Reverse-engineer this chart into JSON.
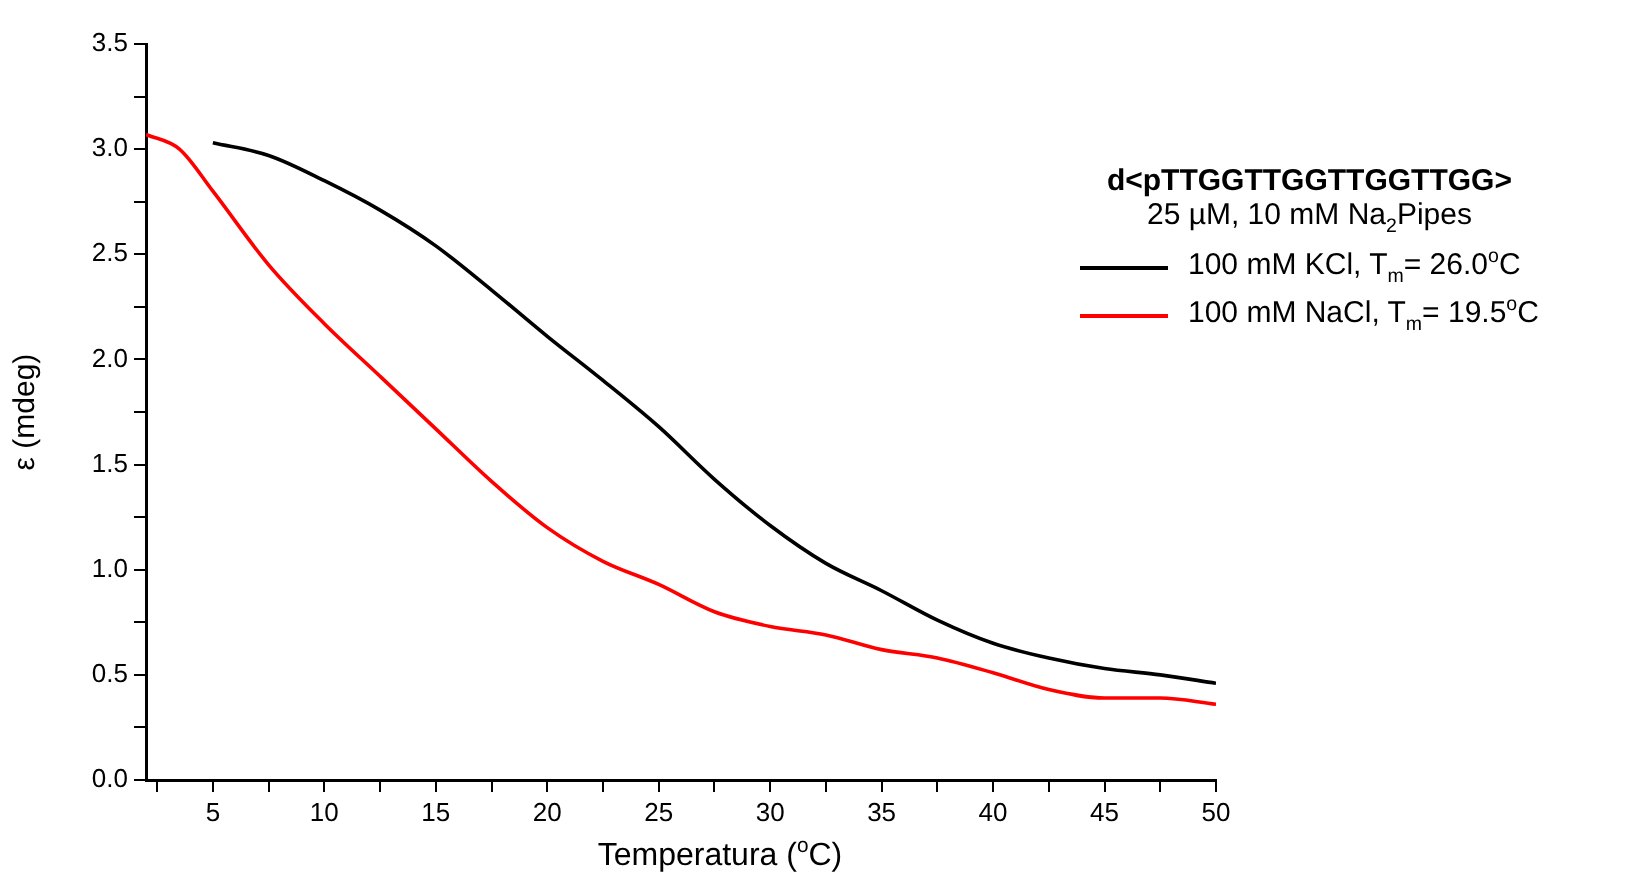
{
  "chart_data": {
    "type": "line",
    "xlabel": "Temperatura ($^{o}$C)",
    "ylabel": "ε (mdeg)",
    "legend_title": "d<pTTGGTTGGTTGGTTGG>",
    "subtitle": "25 µM, 10 mM Na$_{2}$Pipes",
    "xlim": [
      2,
      50
    ],
    "xticks": [
      {
        "value": 2.5,
        "label": null
      },
      5,
      {
        "value": 7.5,
        "label": null
      },
      10,
      {
        "value": 12.5,
        "label": null
      },
      15,
      {
        "value": 17.5,
        "label": null
      },
      20,
      {
        "value": 22.5,
        "label": null
      },
      25,
      {
        "value": 27.5,
        "label": null
      },
      30,
      {
        "value": 32.5,
        "label": null
      },
      35,
      {
        "value": 37.5,
        "label": null
      },
      40,
      {
        "value": 42.5,
        "label": null
      },
      45,
      {
        "value": 47.5,
        "label": null
      },
      50
    ],
    "ylim": [
      0,
      3.5
    ],
    "yticks": [
      {
        "value": 0,
        "label": "0.0"
      },
      {
        "value": 0.25,
        "label": null
      },
      0.5,
      {
        "value": 0.75,
        "label": null
      },
      {
        "value": 1,
        "label": "1.0"
      },
      {
        "value": 1.25,
        "label": null
      },
      1.5,
      {
        "value": 1.75,
        "label": null
      },
      {
        "value": 2,
        "label": "2.0"
      },
      {
        "value": 2.25,
        "label": null
      },
      2.5,
      {
        "value": 2.75,
        "label": null
      },
      {
        "value": 3,
        "label": "3.0"
      },
      {
        "value": 3.25,
        "label": null
      },
      3.5
    ],
    "grid": false,
    "legend": "top right",
    "marker": "none",
    "line_style": "solid",
    "series": [
      {
        "name": "100 mM KCl, T$_{m}$= 26.0$^{o}$C",
        "color": "#000000",
        "x": [
          5,
          7.5,
          10,
          12.5,
          15,
          17.5,
          20,
          22.5,
          25,
          27.5,
          30,
          32.5,
          35,
          37.5,
          40,
          42.5,
          45,
          47.5,
          50
        ],
        "values": [
          3.03,
          2.97,
          2.85,
          2.71,
          2.54,
          2.33,
          2.11,
          1.9,
          1.68,
          1.43,
          1.21,
          1.03,
          0.9,
          0.76,
          0.65,
          0.58,
          0.53,
          0.5,
          0.46
        ]
      },
      {
        "name": "100 mM NaCl, T$_{m}$= 19.5$^{o}$C",
        "color": "#ff0000",
        "x": [
          2,
          3.5,
          5,
          7.5,
          10,
          12.5,
          15,
          17.5,
          20,
          22.5,
          25,
          27.5,
          30,
          32.5,
          35,
          37.5,
          40,
          42.5,
          45,
          47.5,
          50
        ],
        "values": [
          3.07,
          3.0,
          2.8,
          2.45,
          2.17,
          1.92,
          1.67,
          1.42,
          1.2,
          1.04,
          0.93,
          0.8,
          0.73,
          0.69,
          0.62,
          0.58,
          0.51,
          0.43,
          0.39,
          0.39,
          0.36
        ]
      }
    ]
  }
}
